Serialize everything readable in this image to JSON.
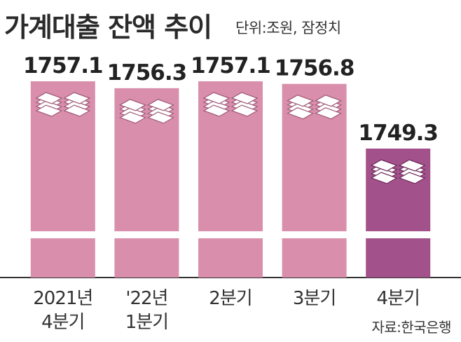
{
  "title": "가계대출 잔액 추이",
  "unit": "단위:조원, 잠정치",
  "source": "자료:한국은행",
  "colors": {
    "bar": "#d98fab",
    "bar_highlight": "#a3518a",
    "bar_text": "#222222"
  },
  "chart_data": {
    "type": "bar",
    "axis_break": true,
    "categories": [
      [
        "2021년",
        "4분기"
      ],
      [
        "'22년",
        "1분기"
      ],
      [
        "2분기"
      ],
      [
        "3분기"
      ],
      [
        "4분기"
      ]
    ],
    "values": [
      1757.1,
      1756.3,
      1757.1,
      1756.8,
      1749.3
    ],
    "value_labels": [
      "1757.1",
      "1756.3",
      "1757.1",
      "1756.8",
      "1749.3"
    ],
    "highlight_index": 4,
    "icon": "stacked-banknotes-icon",
    "ylim": [
      1745,
      1758
    ],
    "grid": false,
    "legend": "none"
  }
}
